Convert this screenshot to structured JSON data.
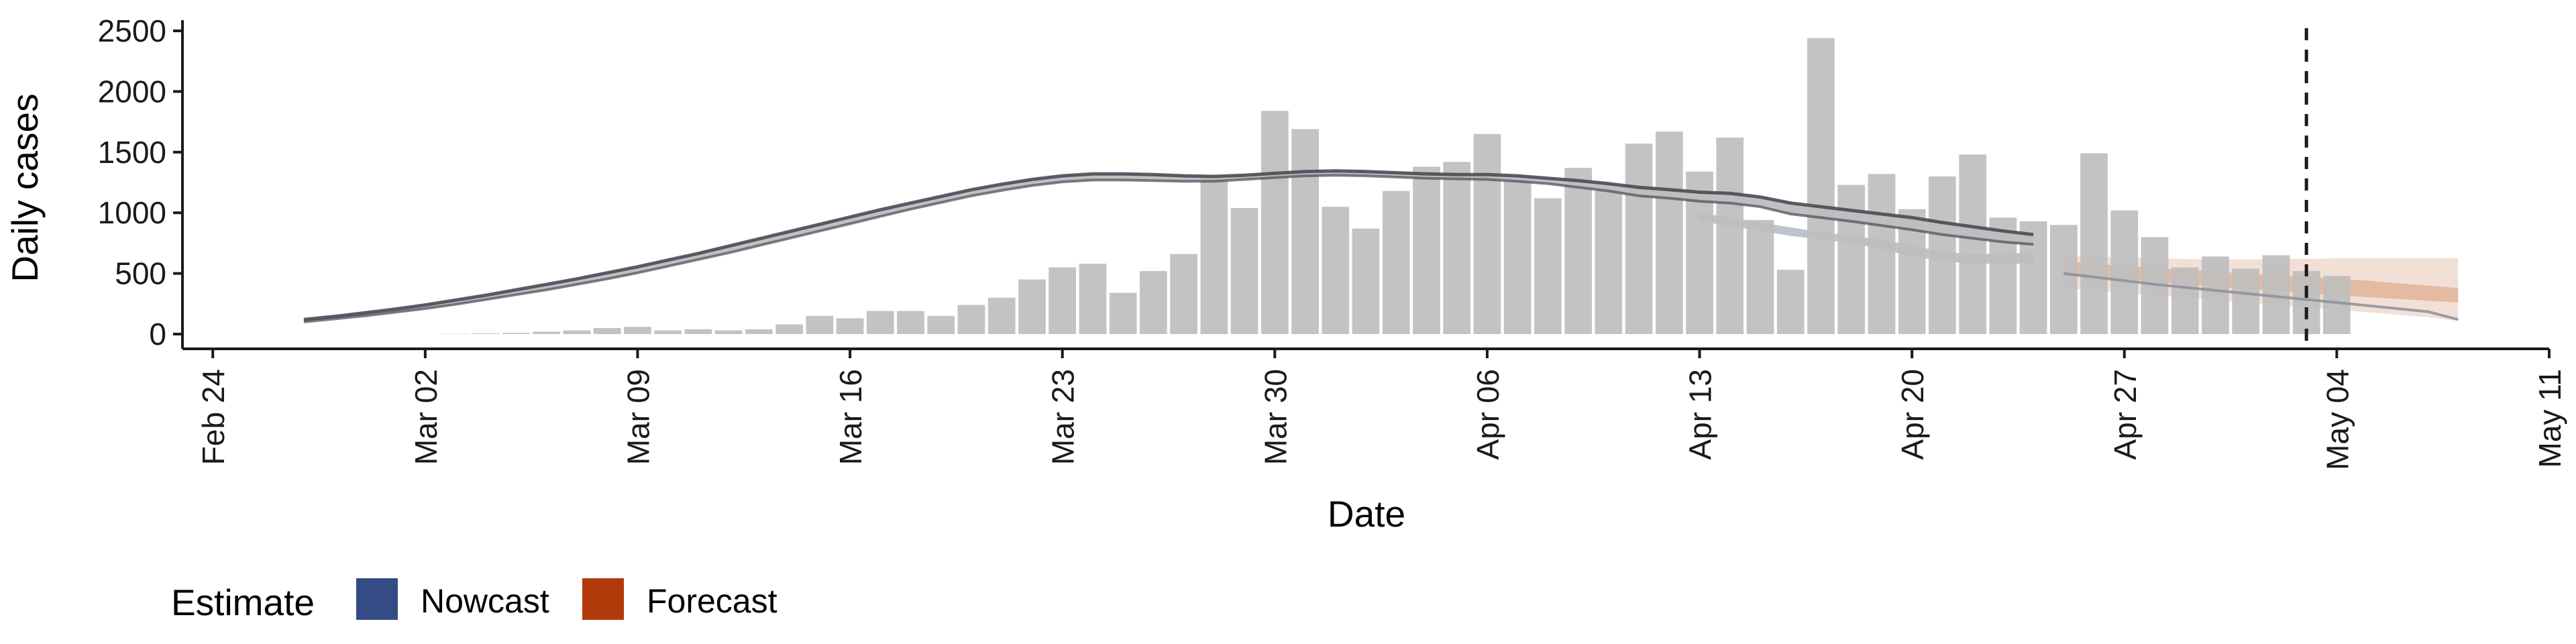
{
  "chart_data": {
    "type": "bar",
    "xlabel": "Date",
    "ylabel": "Daily cases",
    "ylim": [
      0,
      2500
    ],
    "y_ticks": [
      0,
      500,
      1000,
      1500,
      2000,
      2500
    ],
    "x_ticks": [
      "Feb 24",
      "Mar 02",
      "Mar 09",
      "Mar 16",
      "Mar 23",
      "Mar 30",
      "Apr 06",
      "Apr 13",
      "Apr 20",
      "Apr 27",
      "May 04",
      "May 11"
    ],
    "x_range": [
      "2020-02-23",
      "2020-05-11"
    ],
    "grid": false,
    "legend": {
      "title": "Estimate",
      "position": "bottom-left",
      "entries": [
        {
          "label": "Nowcast",
          "color": "#344b85"
        },
        {
          "label": "Forecast",
          "color": "#b13a0b"
        }
      ]
    },
    "reference_line": {
      "date": "2020-05-03",
      "style": "dashed"
    },
    "bars": {
      "color": "#bebebe",
      "start_date": "2020-03-03",
      "values": [
        2,
        5,
        10,
        20,
        30,
        50,
        60,
        30,
        40,
        30,
        40,
        80,
        150,
        130,
        190,
        190,
        150,
        240,
        300,
        450,
        550,
        580,
        340,
        520,
        660,
        1290,
        1040,
        1840,
        1690,
        1050,
        870,
        1180,
        1380,
        1420,
        1650,
        1260,
        1120,
        1370,
        1190,
        1570,
        1670,
        1340,
        1620,
        940,
        530,
        2440,
        1230,
        1320,
        1030,
        1300,
        1480,
        960,
        930,
        900,
        1490,
        1020,
        800,
        550,
        640,
        540,
        650,
        520,
        480
      ]
    },
    "series": [
      {
        "name": "Nowcast",
        "type": "line-band",
        "color": "#4a4a55",
        "start_date": "2020-02-27",
        "end_date": "2020-04-24",
        "upper": [
          120,
          145,
          175,
          205,
          240,
          280,
          320,
          365,
          410,
          455,
          505,
          555,
          610,
          665,
          725,
          785,
          845,
          905,
          965,
          1025,
          1080,
          1135,
          1190,
          1235,
          1275,
          1305,
          1320,
          1320,
          1315,
          1305,
          1300,
          1310,
          1325,
          1340,
          1345,
          1340,
          1330,
          1320,
          1315,
          1315,
          1305,
          1285,
          1265,
          1240,
          1210,
          1190,
          1170,
          1160,
          1130,
          1080,
          1050,
          1020,
          990,
          960,
          920,
          885,
          850,
          820
        ],
        "lower": [
          100,
          125,
          150,
          180,
          210,
          245,
          285,
          325,
          365,
          410,
          455,
          505,
          560,
          615,
          670,
          730,
          790,
          850,
          910,
          970,
          1030,
          1085,
          1140,
          1185,
          1225,
          1255,
          1270,
          1270,
          1265,
          1260,
          1260,
          1275,
          1290,
          1305,
          1310,
          1305,
          1295,
          1285,
          1280,
          1275,
          1260,
          1240,
          1210,
          1180,
          1140,
          1120,
          1095,
          1080,
          1050,
          990,
          960,
          930,
          895,
          860,
          820,
          790,
          760,
          740
        ]
      },
      {
        "name": "Nowcast",
        "type": "band",
        "color": "#8a8fa8",
        "start_date": "2020-04-13",
        "end_date": "2020-04-24",
        "upper": [
          1000,
          960,
          920,
          880,
          840,
          810,
          780,
          730,
          680,
          660,
          665,
          670
        ],
        "lower": [
          930,
          890,
          850,
          810,
          780,
          750,
          700,
          640,
          600,
          580,
          580,
          580
        ]
      },
      {
        "name": "Forecast",
        "type": "band",
        "color": "#e8c7b5",
        "start_date": "2020-04-25",
        "end_date": "2020-05-08",
        "upper": [
          650,
          640,
          630,
          625,
          620,
          615,
          615,
          620,
          620,
          625,
          625,
          625,
          625,
          625
        ],
        "lower": [
          380,
          360,
          340,
          320,
          300,
          280,
          260,
          240,
          220,
          200,
          180,
          160,
          140,
          110
        ]
      },
      {
        "name": "Forecast",
        "type": "band",
        "color": "#d99a7a",
        "start_date": "2020-04-25",
        "end_date": "2020-05-08",
        "upper": [
          600,
          580,
          560,
          545,
          530,
          515,
          500,
          485,
          470,
          455,
          440,
          420,
          400,
          380
        ],
        "lower": [
          480,
          465,
          450,
          430,
          410,
          390,
          370,
          355,
          335,
          320,
          305,
          290,
          275,
          260
        ]
      },
      {
        "name": "Forecast",
        "type": "line",
        "color": "#8c8f9a",
        "start_date": "2020-04-25",
        "end_date": "2020-05-08",
        "values": [
          500,
          470,
          440,
          410,
          385,
          360,
          335,
          310,
          285,
          260,
          235,
          210,
          185,
          120
        ]
      }
    ]
  }
}
